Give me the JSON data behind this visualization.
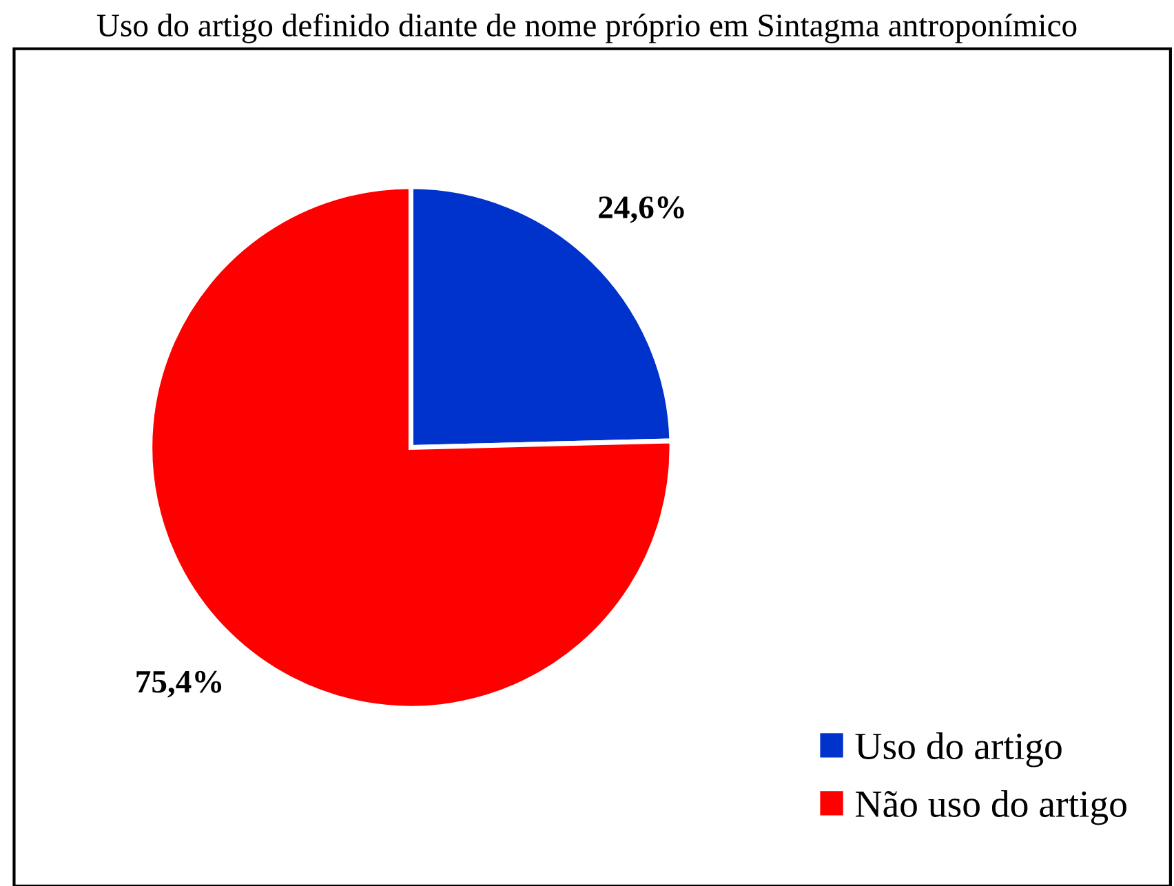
{
  "chart_data": {
    "type": "pie",
    "title": "Uso do artigo definido diante de nome próprio em Sintagma antroponímico",
    "categories": [
      "Uso do artigo",
      "Não uso do artigo"
    ],
    "values": [
      24.6,
      75.4
    ],
    "colors": [
      "#0033cc",
      "#ff0000"
    ],
    "value_labels": [
      "24,6%",
      "75,4%"
    ],
    "legend": "bottom right"
  }
}
